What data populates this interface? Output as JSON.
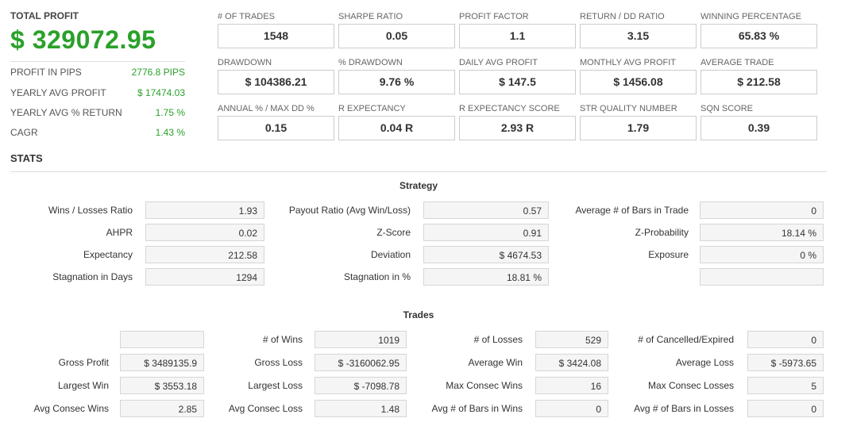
{
  "summary": {
    "total_profit_label": "TOTAL PROFIT",
    "total_profit_value": "$ 329072.95",
    "rows": [
      {
        "label": "PROFIT IN PIPS",
        "value": "2776.8 PIPS"
      },
      {
        "label": "YEARLY AVG PROFIT",
        "value": "$ 17474.03"
      },
      {
        "label": "YEARLY AVG % RETURN",
        "value": "1.75 %"
      },
      {
        "label": "CAGR",
        "value": "1.43 %"
      }
    ]
  },
  "metrics": [
    {
      "label": "# OF TRADES",
      "value": "1548"
    },
    {
      "label": "SHARPE RATIO",
      "value": "0.05"
    },
    {
      "label": "PROFIT FACTOR",
      "value": "1.1"
    },
    {
      "label": "RETURN / DD RATIO",
      "value": "3.15"
    },
    {
      "label": "WINNING PERCENTAGE",
      "value": "65.83 %"
    },
    {
      "label": "DRAWDOWN",
      "value": "$ 104386.21"
    },
    {
      "label": "% DRAWDOWN",
      "value": "9.76 %"
    },
    {
      "label": "DAILY AVG PROFIT",
      "value": "$ 147.5"
    },
    {
      "label": "MONTHLY AVG PROFIT",
      "value": "$ 1456.08"
    },
    {
      "label": "AVERAGE TRADE",
      "value": "$ 212.58"
    },
    {
      "label": "ANNUAL % / MAX DD %",
      "value": "0.15"
    },
    {
      "label": "R EXPECTANCY",
      "value": "0.04 R"
    },
    {
      "label": "R EXPECTANCY SCORE",
      "value": "2.93 R"
    },
    {
      "label": "STR QUALITY NUMBER",
      "value": "1.79"
    },
    {
      "label": "SQN SCORE",
      "value": "0.39"
    }
  ],
  "stats_title": "STATS",
  "strategy": {
    "title": "Strategy",
    "rows": [
      [
        {
          "label": "Wins / Losses Ratio",
          "value": "1.93"
        },
        {
          "label": "Payout Ratio (Avg Win/Loss)",
          "value": "0.57"
        },
        {
          "label": "Average # of Bars in Trade",
          "value": "0"
        }
      ],
      [
        {
          "label": "AHPR",
          "value": "0.02"
        },
        {
          "label": "Z-Score",
          "value": "0.91"
        },
        {
          "label": "Z-Probability",
          "value": "18.14 %"
        }
      ],
      [
        {
          "label": "Expectancy",
          "value": "212.58"
        },
        {
          "label": "Deviation",
          "value": "$ 4674.53"
        },
        {
          "label": "Exposure",
          "value": "0 %"
        }
      ],
      [
        {
          "label": "Stagnation in Days",
          "value": "1294"
        },
        {
          "label": "Stagnation in %",
          "value": "18.81 %"
        },
        {
          "label": "",
          "value": ""
        }
      ]
    ]
  },
  "trades": {
    "title": "Trades",
    "rows": [
      [
        {
          "label": "",
          "value": ""
        },
        {
          "label": "# of Wins",
          "value": "1019"
        },
        {
          "label": "# of Losses",
          "value": "529"
        },
        {
          "label": "# of Cancelled/Expired",
          "value": "0"
        }
      ],
      [
        {
          "label": "Gross Profit",
          "value": "$ 3489135.9"
        },
        {
          "label": "Gross Loss",
          "value": "$ -3160062.95"
        },
        {
          "label": "Average Win",
          "value": "$ 3424.08"
        },
        {
          "label": "Average Loss",
          "value": "$ -5973.65"
        }
      ],
      [
        {
          "label": "Largest Win",
          "value": "$ 3553.18"
        },
        {
          "label": "Largest Loss",
          "value": "$ -7098.78"
        },
        {
          "label": "Max Consec Wins",
          "value": "16"
        },
        {
          "label": "Max Consec Losses",
          "value": "5"
        }
      ],
      [
        {
          "label": "Avg Consec Wins",
          "value": "2.85"
        },
        {
          "label": "Avg Consec Loss",
          "value": "1.48"
        },
        {
          "label": "Avg # of Bars in Wins",
          "value": "0"
        },
        {
          "label": "Avg # of Bars in Losses",
          "value": "0"
        }
      ]
    ]
  }
}
